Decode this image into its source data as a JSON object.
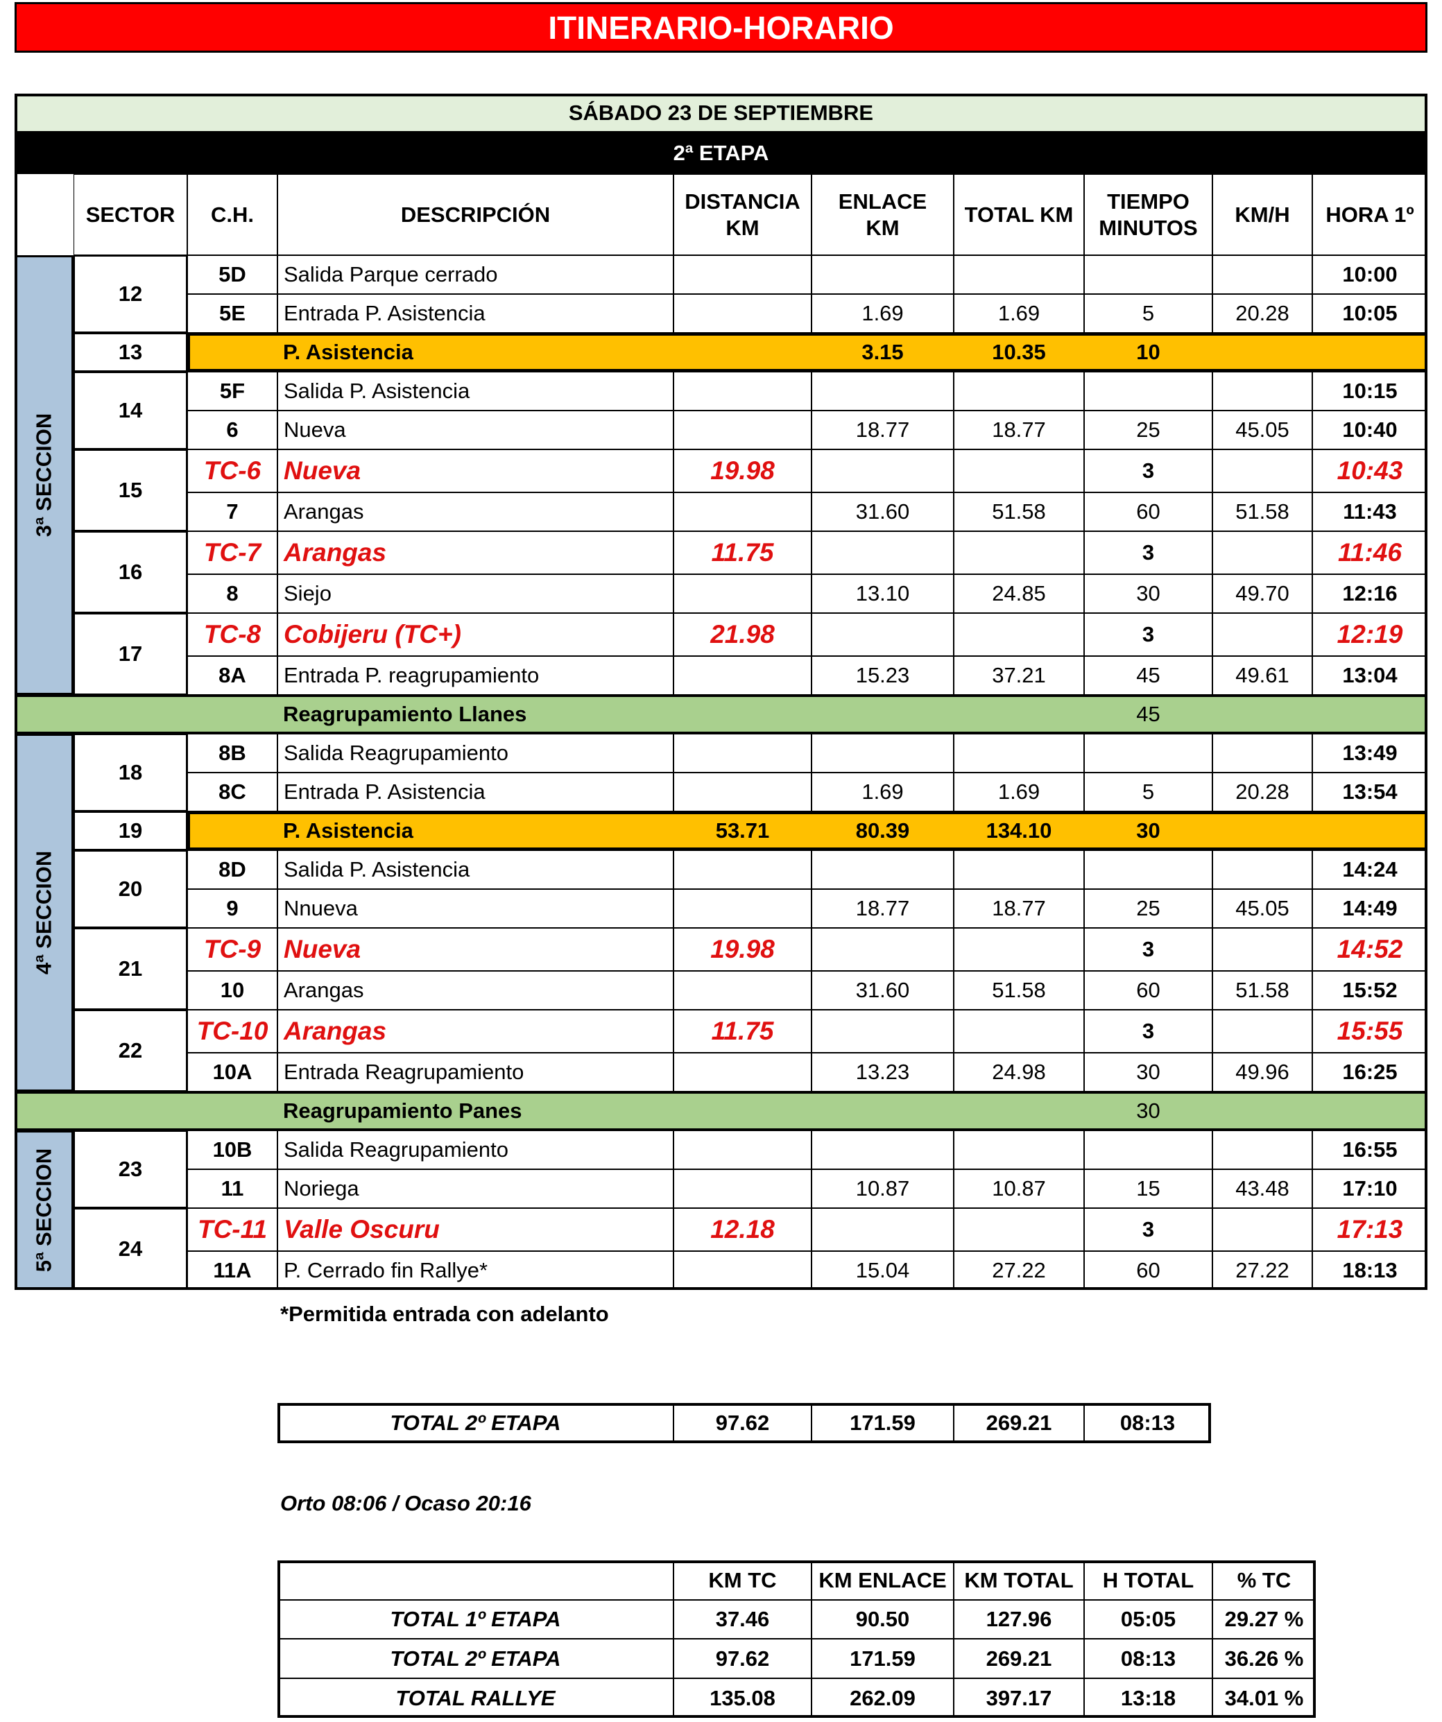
{
  "header": {
    "title": "ITINERARIO-HORARIO"
  },
  "itinerary": {
    "date": "SÁBADO 23 DE SEPTIEMBRE",
    "stage": "2ª ETAPA",
    "columns": [
      [
        "SECTOR"
      ],
      [
        "C.H."
      ],
      [
        "DESCRIPCIÓN"
      ],
      [
        "DISTANCIA",
        "KM"
      ],
      [
        "ENLACE",
        "KM"
      ],
      [
        "TOTAL KM"
      ],
      [
        "TIEMPO",
        "MINUTOS"
      ],
      [
        "KM/H"
      ],
      [
        "HORA 1º"
      ]
    ],
    "body": [
      {
        "section": "3ª SECCION",
        "sectors": [
          {
            "sector": "12",
            "rows": [
              {
                "ch": "5D",
                "description": "Salida Parque cerrado",
                "time": "10:00"
              },
              {
                "ch": "5E",
                "description": "Entrada P. Asistencia",
                "link": "1.69",
                "total": "1.69",
                "minutes": "5",
                "speed": "20.28",
                "time": "10:05"
              }
            ]
          },
          {
            "sector": "13",
            "kind": "service",
            "rows": [
              {
                "description": "P. Asistencia",
                "link": "3.15",
                "total": "10.35",
                "minutes": "10"
              }
            ]
          },
          {
            "sector": "14",
            "rows": [
              {
                "ch": "5F",
                "description": "Salida P. Asistencia",
                "time": "10:15"
              },
              {
                "ch": "6",
                "description": "Nueva",
                "link": "18.77",
                "total": "18.77",
                "minutes": "25",
                "speed": "45.05",
                "time": "10:40"
              }
            ]
          },
          {
            "sector": "15",
            "rows": [
              {
                "kind": "tc",
                "ch": "TC-6",
                "description": "Nueva",
                "distance": "19.98",
                "minutes": "3",
                "time": "10:43"
              },
              {
                "ch": "7",
                "description": "Arangas",
                "link": "31.60",
                "total": "51.58",
                "minutes": "60",
                "speed": "51.58",
                "time": "11:43"
              }
            ]
          },
          {
            "sector": "16",
            "rows": [
              {
                "kind": "tc",
                "ch": "TC-7",
                "description": "Arangas",
                "distance": "11.75",
                "minutes": "3",
                "time": "11:46"
              },
              {
                "ch": "8",
                "description": "Siejo",
                "link": "13.10",
                "total": "24.85",
                "minutes": "30",
                "speed": "49.70",
                "time": "12:16"
              }
            ]
          },
          {
            "sector": "17",
            "rows": [
              {
                "kind": "tc",
                "ch": "TC-8",
                "description": "Cobijeru (TC+)",
                "distance": "21.98",
                "minutes": "3",
                "time": "12:19"
              },
              {
                "ch": "8A",
                "description": "Entrada P. reagrupamiento",
                "link": "15.23",
                "total": "37.21",
                "minutes": "45",
                "speed": "49.61",
                "time": "13:04"
              }
            ]
          }
        ]
      },
      {
        "regroup": "Reagrupamiento Llanes",
        "minutes": "45"
      },
      {
        "section": "4ª SECCION",
        "sectors": [
          {
            "sector": "18",
            "rows": [
              {
                "ch": "8B",
                "description": "Salida Reagrupamiento",
                "time": "13:49"
              },
              {
                "ch": "8C",
                "description": "Entrada P. Asistencia",
                "link": "1.69",
                "total": "1.69",
                "minutes": "5",
                "speed": "20.28",
                "time": "13:54"
              }
            ]
          },
          {
            "sector": "19",
            "kind": "service",
            "rows": [
              {
                "description": "P. Asistencia",
                "distance": "53.71",
                "link": "80.39",
                "total": "134.10",
                "minutes": "30"
              }
            ]
          },
          {
            "sector": "20",
            "rows": [
              {
                "ch": "8D",
                "description": "Salida P. Asistencia",
                "time": "14:24"
              },
              {
                "ch": "9",
                "description": "Nnueva",
                "link": "18.77",
                "total": "18.77",
                "minutes": "25",
                "speed": "45.05",
                "time": "14:49"
              }
            ]
          },
          {
            "sector": "21",
            "rows": [
              {
                "kind": "tc",
                "ch": "TC-9",
                "description": "Nueva",
                "distance": "19.98",
                "minutes": "3",
                "time": "14:52"
              },
              {
                "ch": "10",
                "description": "Arangas",
                "link": "31.60",
                "total": "51.58",
                "minutes": "60",
                "speed": "51.58",
                "time": "15:52"
              }
            ]
          },
          {
            "sector": "22",
            "rows": [
              {
                "kind": "tc",
                "ch": "TC-10",
                "description": "Arangas",
                "distance": "11.75",
                "minutes": "3",
                "time": "15:55"
              },
              {
                "ch": "10A",
                "description": "Entrada Reagrupamiento",
                "link": "13.23",
                "total": "24.98",
                "minutes": "30",
                "speed": "49.96",
                "time": "16:25"
              }
            ]
          }
        ]
      },
      {
        "regroup": "Reagrupamiento Panes",
        "minutes": "30"
      },
      {
        "section": "5ª SECCION",
        "sectors": [
          {
            "sector": "23",
            "rows": [
              {
                "ch": "10B",
                "description": "Salida Reagrupamiento",
                "time": "16:55"
              },
              {
                "ch": "11",
                "description": "Noriega",
                "link": "10.87",
                "total": "10.87",
                "minutes": "15",
                "speed": "43.48",
                "time": "17:10"
              }
            ]
          },
          {
            "sector": "24",
            "rows": [
              {
                "kind": "tc",
                "ch": "TC-11",
                "description": "Valle Oscuru",
                "distance": "12.18",
                "minutes": "3",
                "time": "17:13"
              },
              {
                "ch": "11A",
                "description": "P. Cerrado fin Rallye*",
                "link": "15.04",
                "total": "27.22",
                "minutes": "60",
                "speed": "27.22",
                "time": "18:13"
              }
            ]
          }
        ]
      }
    ]
  },
  "note": "*Permitida entrada con adelanto",
  "stage_total": {
    "label": "TOTAL 2º ETAPA",
    "cells": [
      "97.62",
      "171.59",
      "269.21",
      "08:13"
    ]
  },
  "sun": "Orto 08:06 / Ocaso 20:16",
  "summary": {
    "columns": [
      "KM TC",
      "KM ENLACE",
      "KM TOTAL",
      "H TOTAL",
      "% TC"
    ],
    "rows": [
      {
        "label": "TOTAL 1º ETAPA",
        "cells": [
          "37.46",
          "90.50",
          "127.96",
          "05:05",
          "29.27 %"
        ]
      },
      {
        "label": "TOTAL 2º ETAPA",
        "cells": [
          "97.62",
          "171.59",
          "269.21",
          "08:13",
          "36.26 %"
        ]
      },
      {
        "label": "TOTAL RALLYE",
        "cells": [
          "135.08",
          "262.09",
          "397.17",
          "13:18",
          "34.01 %"
        ]
      }
    ]
  }
}
